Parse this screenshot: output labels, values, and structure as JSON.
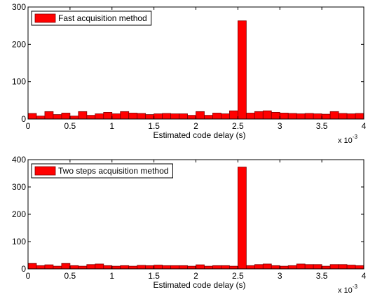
{
  "figure": {
    "background": "#ffffff"
  },
  "chart_data": [
    {
      "type": "bar",
      "bar_color": "#ff0000",
      "edge_color": "#800000",
      "legend": "Fast acquisition method",
      "legend_position": "top-left",
      "xlabel": "Estimated code delay (s)",
      "ylabel": "",
      "x_multiplier": {
        "base": "x 10",
        "exponent": "-3"
      },
      "xlim": [
        0,
        4
      ],
      "ylim": [
        0,
        300
      ],
      "xticks": [
        "0",
        "0.5",
        "1",
        "1.5",
        "2",
        "2.5",
        "3",
        "3.5",
        "4"
      ],
      "yticks": [
        "0",
        "100",
        "200",
        "300"
      ],
      "bin_width": 0.1,
      "x": [
        0.05,
        0.15,
        0.25,
        0.35,
        0.45,
        0.55,
        0.65,
        0.75,
        0.85,
        0.95,
        1.05,
        1.15,
        1.25,
        1.35,
        1.45,
        1.55,
        1.65,
        1.75,
        1.85,
        1.95,
        2.05,
        2.15,
        2.25,
        2.35,
        2.45,
        2.55,
        2.65,
        2.75,
        2.85,
        2.95,
        3.05,
        3.15,
        3.25,
        3.35,
        3.45,
        3.55,
        3.65,
        3.75,
        3.85,
        3.95
      ],
      "values": [
        15,
        8,
        20,
        12,
        16,
        8,
        20,
        10,
        14,
        18,
        14,
        20,
        16,
        15,
        12,
        14,
        15,
        14,
        14,
        10,
        20,
        10,
        16,
        14,
        22,
        263,
        16,
        20,
        22,
        18,
        16,
        15,
        14,
        15,
        14,
        13,
        20,
        15,
        14,
        15
      ]
    },
    {
      "type": "bar",
      "bar_color": "#ff0000",
      "edge_color": "#800000",
      "legend": "Two steps acquisition method",
      "legend_position": "top-left",
      "xlabel": "Estimated code delay (s)",
      "ylabel": "",
      "x_multiplier": {
        "base": "x 10",
        "exponent": "-3"
      },
      "xlim": [
        0,
        4
      ],
      "ylim": [
        0,
        400
      ],
      "xticks": [
        "0",
        "0.5",
        "1",
        "1.5",
        "2",
        "2.5",
        "3",
        "3.5",
        "4"
      ],
      "yticks": [
        "0",
        "100",
        "200",
        "300",
        "400"
      ],
      "bin_width": 0.1,
      "x": [
        0.05,
        0.15,
        0.25,
        0.35,
        0.45,
        0.55,
        0.65,
        0.75,
        0.85,
        0.95,
        1.05,
        1.15,
        1.25,
        1.35,
        1.45,
        1.55,
        1.65,
        1.75,
        1.85,
        1.95,
        2.05,
        2.15,
        2.25,
        2.35,
        2.45,
        2.55,
        2.65,
        2.75,
        2.85,
        2.95,
        3.05,
        3.15,
        3.25,
        3.35,
        3.45,
        3.55,
        3.65,
        3.75,
        3.85,
        3.95
      ],
      "values": [
        20,
        12,
        15,
        10,
        20,
        12,
        10,
        16,
        18,
        12,
        10,
        12,
        10,
        13,
        12,
        14,
        12,
        12,
        12,
        10,
        15,
        10,
        12,
        12,
        10,
        373,
        12,
        16,
        18,
        12,
        10,
        12,
        18,
        16,
        16,
        10,
        16,
        16,
        14,
        12
      ]
    }
  ]
}
